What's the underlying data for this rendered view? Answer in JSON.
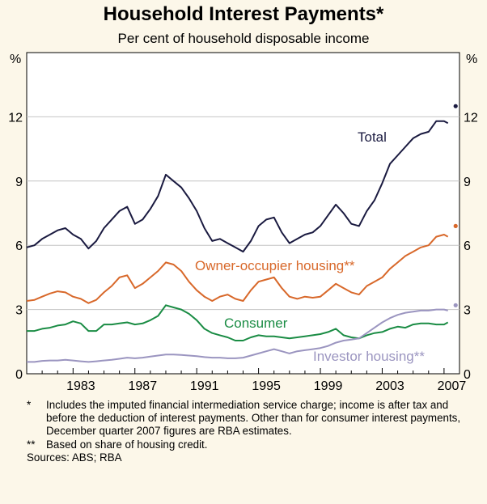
{
  "colors": {
    "background": "#fcf7e9",
    "plot_background": "#ffffff",
    "grid": "#c4c4c4",
    "total": "#1a1a40",
    "owner": "#d8682a",
    "consumer": "#1a8c44",
    "investor": "#9b95c0"
  },
  "chart_data": {
    "type": "line",
    "title": "Household Interest Payments*",
    "subtitle": "Per cent of household disposable income",
    "ylabel_left": "%",
    "ylabel_right": "%",
    "ylim": [
      0,
      15
    ],
    "yticks": [
      0,
      3,
      6,
      9,
      12
    ],
    "ytick_labels": [
      "0",
      "3",
      "6",
      "9",
      "12"
    ],
    "xlim": [
      1980.0,
      2008.0
    ],
    "xticks": [
      1983,
      1987,
      1991,
      1995,
      1999,
      2003,
      2007
    ],
    "xtick_labels": [
      "1983",
      "1987",
      "1991",
      "1995",
      "1999",
      "2003",
      "2007"
    ],
    "grid": true,
    "series": [
      {
        "name": "Total",
        "label": "Total",
        "color_key": "total",
        "points": [
          [
            1980.0,
            5.9
          ],
          [
            1980.5,
            6.0
          ],
          [
            1981.0,
            6.3
          ],
          [
            1981.5,
            6.5
          ],
          [
            1982.0,
            6.7
          ],
          [
            1982.5,
            6.8
          ],
          [
            1983.0,
            6.5
          ],
          [
            1983.5,
            6.3
          ],
          [
            1984.0,
            5.85
          ],
          [
            1984.5,
            6.2
          ],
          [
            1985.0,
            6.8
          ],
          [
            1985.5,
            7.2
          ],
          [
            1986.0,
            7.6
          ],
          [
            1986.5,
            7.8
          ],
          [
            1987.0,
            7.0
          ],
          [
            1987.5,
            7.2
          ],
          [
            1988.0,
            7.7
          ],
          [
            1988.5,
            8.3
          ],
          [
            1989.0,
            9.3
          ],
          [
            1989.5,
            9.0
          ],
          [
            1990.0,
            8.7
          ],
          [
            1990.5,
            8.2
          ],
          [
            1991.0,
            7.6
          ],
          [
            1991.5,
            6.8
          ],
          [
            1992.0,
            6.2
          ],
          [
            1992.5,
            6.3
          ],
          [
            1993.0,
            6.1
          ],
          [
            1993.5,
            5.9
          ],
          [
            1994.0,
            5.7
          ],
          [
            1994.5,
            6.2
          ],
          [
            1995.0,
            6.9
          ],
          [
            1995.5,
            7.2
          ],
          [
            1996.0,
            7.3
          ],
          [
            1996.5,
            6.6
          ],
          [
            1997.0,
            6.1
          ],
          [
            1997.5,
            6.3
          ],
          [
            1998.0,
            6.5
          ],
          [
            1998.5,
            6.6
          ],
          [
            1999.0,
            6.9
          ],
          [
            1999.5,
            7.4
          ],
          [
            2000.0,
            7.9
          ],
          [
            2000.5,
            7.5
          ],
          [
            2001.0,
            7.0
          ],
          [
            2001.5,
            6.9
          ],
          [
            2002.0,
            7.6
          ],
          [
            2002.5,
            8.1
          ],
          [
            2003.0,
            8.9
          ],
          [
            2003.5,
            9.8
          ],
          [
            2004.0,
            10.2
          ],
          [
            2004.5,
            10.6
          ],
          [
            2005.0,
            11.0
          ],
          [
            2005.5,
            11.2
          ],
          [
            2006.0,
            11.3
          ],
          [
            2006.5,
            11.8
          ],
          [
            2007.0,
            11.8
          ],
          [
            2007.25,
            11.7
          ]
        ],
        "dec_2007_estimate": 12.5
      },
      {
        "name": "Owner-occupier housing",
        "label": "Owner-occupier housing**",
        "color_key": "owner",
        "points": [
          [
            1980.0,
            3.4
          ],
          [
            1980.5,
            3.45
          ],
          [
            1981.0,
            3.6
          ],
          [
            1981.5,
            3.75
          ],
          [
            1982.0,
            3.85
          ],
          [
            1982.5,
            3.8
          ],
          [
            1983.0,
            3.6
          ],
          [
            1983.5,
            3.5
          ],
          [
            1984.0,
            3.3
          ],
          [
            1984.5,
            3.45
          ],
          [
            1985.0,
            3.8
          ],
          [
            1985.5,
            4.1
          ],
          [
            1986.0,
            4.5
          ],
          [
            1986.5,
            4.6
          ],
          [
            1987.0,
            4.0
          ],
          [
            1987.5,
            4.2
          ],
          [
            1988.0,
            4.5
          ],
          [
            1988.5,
            4.8
          ],
          [
            1989.0,
            5.2
          ],
          [
            1989.5,
            5.1
          ],
          [
            1990.0,
            4.8
          ],
          [
            1990.5,
            4.3
          ],
          [
            1991.0,
            3.9
          ],
          [
            1991.5,
            3.6
          ],
          [
            1992.0,
            3.4
          ],
          [
            1992.5,
            3.6
          ],
          [
            1993.0,
            3.7
          ],
          [
            1993.5,
            3.5
          ],
          [
            1994.0,
            3.4
          ],
          [
            1994.5,
            3.9
          ],
          [
            1995.0,
            4.3
          ],
          [
            1995.5,
            4.4
          ],
          [
            1996.0,
            4.5
          ],
          [
            1996.5,
            4.0
          ],
          [
            1997.0,
            3.6
          ],
          [
            1997.5,
            3.5
          ],
          [
            1998.0,
            3.6
          ],
          [
            1998.5,
            3.55
          ],
          [
            1999.0,
            3.6
          ],
          [
            1999.5,
            3.9
          ],
          [
            2000.0,
            4.2
          ],
          [
            2000.5,
            4.0
          ],
          [
            2001.0,
            3.8
          ],
          [
            2001.5,
            3.7
          ],
          [
            2002.0,
            4.1
          ],
          [
            2002.5,
            4.3
          ],
          [
            2003.0,
            4.5
          ],
          [
            2003.5,
            4.9
          ],
          [
            2004.0,
            5.2
          ],
          [
            2004.5,
            5.5
          ],
          [
            2005.0,
            5.7
          ],
          [
            2005.5,
            5.9
          ],
          [
            2006.0,
            6.0
          ],
          [
            2006.5,
            6.4
          ],
          [
            2007.0,
            6.5
          ],
          [
            2007.25,
            6.4
          ]
        ],
        "dec_2007_estimate": 6.9
      },
      {
        "name": "Consumer",
        "label": "Consumer",
        "color_key": "consumer",
        "points": [
          [
            1980.0,
            2.0
          ],
          [
            1980.5,
            2.0
          ],
          [
            1981.0,
            2.1
          ],
          [
            1981.5,
            2.15
          ],
          [
            1982.0,
            2.25
          ],
          [
            1982.5,
            2.3
          ],
          [
            1983.0,
            2.45
          ],
          [
            1983.5,
            2.35
          ],
          [
            1984.0,
            2.0
          ],
          [
            1984.5,
            2.0
          ],
          [
            1985.0,
            2.3
          ],
          [
            1985.5,
            2.3
          ],
          [
            1986.0,
            2.35
          ],
          [
            1986.5,
            2.4
          ],
          [
            1987.0,
            2.3
          ],
          [
            1987.5,
            2.35
          ],
          [
            1988.0,
            2.5
          ],
          [
            1988.5,
            2.7
          ],
          [
            1989.0,
            3.2
          ],
          [
            1989.5,
            3.1
          ],
          [
            1990.0,
            3.0
          ],
          [
            1990.5,
            2.8
          ],
          [
            1991.0,
            2.5
          ],
          [
            1991.5,
            2.1
          ],
          [
            1992.0,
            1.9
          ],
          [
            1992.5,
            1.8
          ],
          [
            1993.0,
            1.7
          ],
          [
            1993.5,
            1.55
          ],
          [
            1994.0,
            1.55
          ],
          [
            1994.5,
            1.7
          ],
          [
            1995.0,
            1.8
          ],
          [
            1995.5,
            1.75
          ],
          [
            1996.0,
            1.75
          ],
          [
            1996.5,
            1.7
          ],
          [
            1997.0,
            1.65
          ],
          [
            1997.5,
            1.7
          ],
          [
            1998.0,
            1.75
          ],
          [
            1998.5,
            1.8
          ],
          [
            1999.0,
            1.85
          ],
          [
            1999.5,
            1.95
          ],
          [
            2000.0,
            2.1
          ],
          [
            2000.5,
            1.8
          ],
          [
            2001.0,
            1.7
          ],
          [
            2001.5,
            1.65
          ],
          [
            2002.0,
            1.8
          ],
          [
            2002.5,
            1.9
          ],
          [
            2003.0,
            1.95
          ],
          [
            2003.5,
            2.1
          ],
          [
            2004.0,
            2.2
          ],
          [
            2004.5,
            2.15
          ],
          [
            2005.0,
            2.3
          ],
          [
            2005.5,
            2.35
          ],
          [
            2006.0,
            2.35
          ],
          [
            2006.5,
            2.3
          ],
          [
            2007.0,
            2.3
          ],
          [
            2007.25,
            2.4
          ]
        ]
      },
      {
        "name": "Investor housing",
        "label": "Investor housing**",
        "color_key": "investor",
        "points": [
          [
            1980.0,
            0.55
          ],
          [
            1980.5,
            0.55
          ],
          [
            1981.0,
            0.6
          ],
          [
            1981.5,
            0.62
          ],
          [
            1982.0,
            0.62
          ],
          [
            1982.5,
            0.65
          ],
          [
            1983.0,
            0.62
          ],
          [
            1983.5,
            0.58
          ],
          [
            1984.0,
            0.55
          ],
          [
            1984.5,
            0.58
          ],
          [
            1985.0,
            0.62
          ],
          [
            1985.5,
            0.65
          ],
          [
            1986.0,
            0.7
          ],
          [
            1986.5,
            0.75
          ],
          [
            1987.0,
            0.72
          ],
          [
            1987.5,
            0.75
          ],
          [
            1988.0,
            0.8
          ],
          [
            1988.5,
            0.85
          ],
          [
            1989.0,
            0.9
          ],
          [
            1989.5,
            0.9
          ],
          [
            1990.0,
            0.88
          ],
          [
            1990.5,
            0.85
          ],
          [
            1991.0,
            0.82
          ],
          [
            1991.5,
            0.78
          ],
          [
            1992.0,
            0.75
          ],
          [
            1992.5,
            0.75
          ],
          [
            1993.0,
            0.72
          ],
          [
            1993.5,
            0.72
          ],
          [
            1994.0,
            0.75
          ],
          [
            1994.5,
            0.85
          ],
          [
            1995.0,
            0.95
          ],
          [
            1995.5,
            1.05
          ],
          [
            1996.0,
            1.15
          ],
          [
            1996.5,
            1.05
          ],
          [
            1997.0,
            0.95
          ],
          [
            1997.5,
            1.05
          ],
          [
            1998.0,
            1.1
          ],
          [
            1998.5,
            1.15
          ],
          [
            1999.0,
            1.2
          ],
          [
            1999.5,
            1.3
          ],
          [
            2000.0,
            1.45
          ],
          [
            2000.5,
            1.55
          ],
          [
            2001.0,
            1.6
          ],
          [
            2001.5,
            1.65
          ],
          [
            2002.0,
            1.9
          ],
          [
            2002.5,
            2.15
          ],
          [
            2003.0,
            2.4
          ],
          [
            2003.5,
            2.6
          ],
          [
            2004.0,
            2.75
          ],
          [
            2004.5,
            2.85
          ],
          [
            2005.0,
            2.9
          ],
          [
            2005.5,
            2.95
          ],
          [
            2006.0,
            2.95
          ],
          [
            2006.5,
            3.0
          ],
          [
            2007.0,
            3.0
          ],
          [
            2007.25,
            2.95
          ]
        ],
        "dec_2007_estimate": 3.2
      }
    ]
  },
  "notes": [
    {
      "mark": "*",
      "text": "Includes the imputed financial intermediation service charge; income is after tax and before the deduction of interest payments. Other than for consumer interest payments, December quarter 2007 figures are RBA estimates."
    },
    {
      "mark": "**",
      "text": "Based on share of housing credit."
    }
  ],
  "sources": "Sources: ABS; RBA"
}
